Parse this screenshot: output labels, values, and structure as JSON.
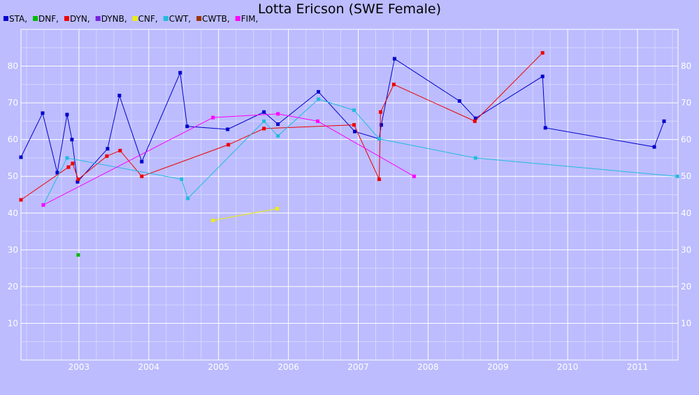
{
  "chart_data": {
    "type": "line",
    "title": "Lotta Ericson (SWE Female)",
    "xlabel": "",
    "ylabel": "",
    "xlim": [
      2002.17,
      2011.58
    ],
    "ylim": [
      0,
      90
    ],
    "x_ticks": [
      "2003",
      "2004",
      "2005",
      "2006",
      "2007",
      "2008",
      "2009",
      "2010",
      "2011"
    ],
    "y_ticks": [
      "10",
      "20",
      "30",
      "40",
      "50",
      "60",
      "70",
      "80"
    ],
    "grid": true,
    "legend_position": "top-left",
    "series": [
      {
        "name": "STA,",
        "color": "#0000cc",
        "points": [
          [
            2002.17,
            55.2
          ],
          [
            2002.48,
            67.2
          ],
          [
            2002.69,
            51.0
          ],
          [
            2002.83,
            66.8
          ],
          [
            2002.9,
            60.0
          ],
          [
            2002.98,
            48.5
          ],
          [
            2003.41,
            57.5
          ],
          [
            2003.58,
            72.0
          ],
          [
            2003.9,
            54.0
          ],
          [
            2004.45,
            78.2
          ],
          [
            2004.55,
            63.6
          ],
          [
            2005.13,
            62.8
          ],
          [
            2005.65,
            67.5
          ],
          [
            2005.85,
            64.2
          ],
          [
            2006.43,
            73.0
          ],
          [
            2006.95,
            62.2
          ],
          [
            2007.3,
            60.2
          ],
          [
            2007.33,
            64.0
          ],
          [
            2007.52,
            82.0
          ],
          [
            2008.45,
            70.5
          ],
          [
            2008.68,
            65.8
          ],
          [
            2009.64,
            77.2
          ],
          [
            2009.68,
            63.2
          ],
          [
            2011.24,
            58.0
          ],
          [
            2011.38,
            65.0
          ]
        ]
      },
      {
        "name": "DNF,",
        "color": "#00bb00",
        "points": [
          [
            2002.99,
            28.6
          ]
        ]
      },
      {
        "name": "DYN,",
        "color": "#ee0000",
        "points": [
          [
            2002.17,
            43.6
          ],
          [
            2002.85,
            52.5
          ],
          [
            2002.91,
            53.5
          ],
          [
            2002.99,
            49.2
          ],
          [
            2003.4,
            55.5
          ],
          [
            2003.59,
            57.0
          ],
          [
            2003.9,
            50.0
          ],
          [
            2005.14,
            58.6
          ],
          [
            2005.65,
            63.0
          ],
          [
            2006.94,
            64.0
          ],
          [
            2007.3,
            49.2
          ],
          [
            2007.32,
            67.5
          ],
          [
            2007.51,
            75.0
          ],
          [
            2008.67,
            65.0
          ],
          [
            2009.64,
            83.6
          ]
        ]
      },
      {
        "name": "DYNB,",
        "color": "#7722dd",
        "points": []
      },
      {
        "name": "CNF,",
        "color": "#eeee00",
        "points": [
          [
            2004.92,
            38.0
          ],
          [
            2005.84,
            41.2
          ]
        ]
      },
      {
        "name": "CWT,",
        "color": "#22bbdd",
        "points": [
          [
            2002.49,
            42.2
          ],
          [
            2002.83,
            55.0
          ],
          [
            2004.47,
            49.2
          ],
          [
            2004.56,
            44.0
          ],
          [
            2005.65,
            65.0
          ],
          [
            2005.85,
            61.0
          ],
          [
            2006.43,
            71.0
          ],
          [
            2006.94,
            68.0
          ],
          [
            2007.3,
            60.2
          ],
          [
            2008.68,
            55.0
          ],
          [
            2011.57,
            50.0
          ]
        ]
      },
      {
        "name": "CWTB,",
        "color": "#993300",
        "points": []
      },
      {
        "name": "FIM,",
        "color": "#ff00ff",
        "points": [
          [
            2002.49,
            42.2
          ],
          [
            2004.92,
            66.0
          ],
          [
            2005.85,
            67.0
          ],
          [
            2006.42,
            65.0
          ],
          [
            2007.8,
            50.0
          ]
        ]
      }
    ]
  }
}
